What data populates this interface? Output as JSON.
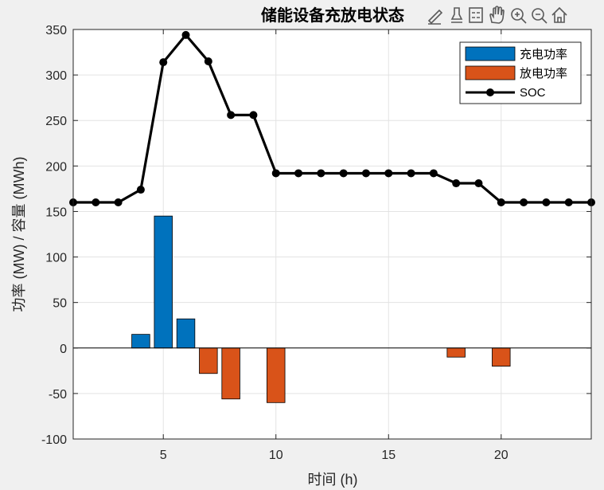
{
  "chart_data": {
    "type": "bar",
    "title": "储能设备充放电状态",
    "xlabel": "时间 (h)",
    "ylabel": "功率 (MW) / 容量 (MWh)",
    "xlim": [
      1,
      24
    ],
    "ylim": [
      -100,
      350
    ],
    "xticks": [
      5,
      10,
      15,
      20
    ],
    "yticks": [
      -100,
      -50,
      0,
      50,
      100,
      150,
      200,
      250,
      300,
      350
    ],
    "grid": true,
    "legend_position": "top-right",
    "x": [
      1,
      2,
      3,
      4,
      5,
      6,
      7,
      8,
      9,
      10,
      11,
      12,
      13,
      14,
      15,
      16,
      17,
      18,
      19,
      20,
      21,
      22,
      23,
      24
    ],
    "series": [
      {
        "name": "充电功率",
        "kind": "bar",
        "color": "#0072BD",
        "values": [
          0,
          0,
          0,
          15,
          145,
          32,
          0,
          0,
          0,
          0,
          0,
          0,
          0,
          0,
          0,
          0,
          0,
          0,
          0,
          0,
          0,
          0,
          0,
          0
        ]
      },
      {
        "name": "放电功率",
        "kind": "bar",
        "color": "#D95319",
        "values": [
          0,
          0,
          0,
          0,
          0,
          0,
          -28,
          -56,
          0,
          -60,
          0,
          0,
          0,
          0,
          0,
          0,
          0,
          -10,
          0,
          -20,
          0,
          0,
          0,
          0
        ]
      },
      {
        "name": "SOC",
        "kind": "line",
        "color": "#000000",
        "marker": "circle",
        "values": [
          160,
          160,
          160,
          174,
          314,
          344,
          315,
          256,
          256,
          192,
          192,
          192,
          192,
          192,
          192,
          192,
          192,
          181,
          181,
          160,
          160,
          160,
          160,
          160
        ]
      }
    ]
  },
  "toolbar": {
    "icons": [
      "brush-icon",
      "data-cursor-icon",
      "legend-icon",
      "pan-icon",
      "zoom-in-icon",
      "zoom-out-icon",
      "home-icon"
    ]
  }
}
